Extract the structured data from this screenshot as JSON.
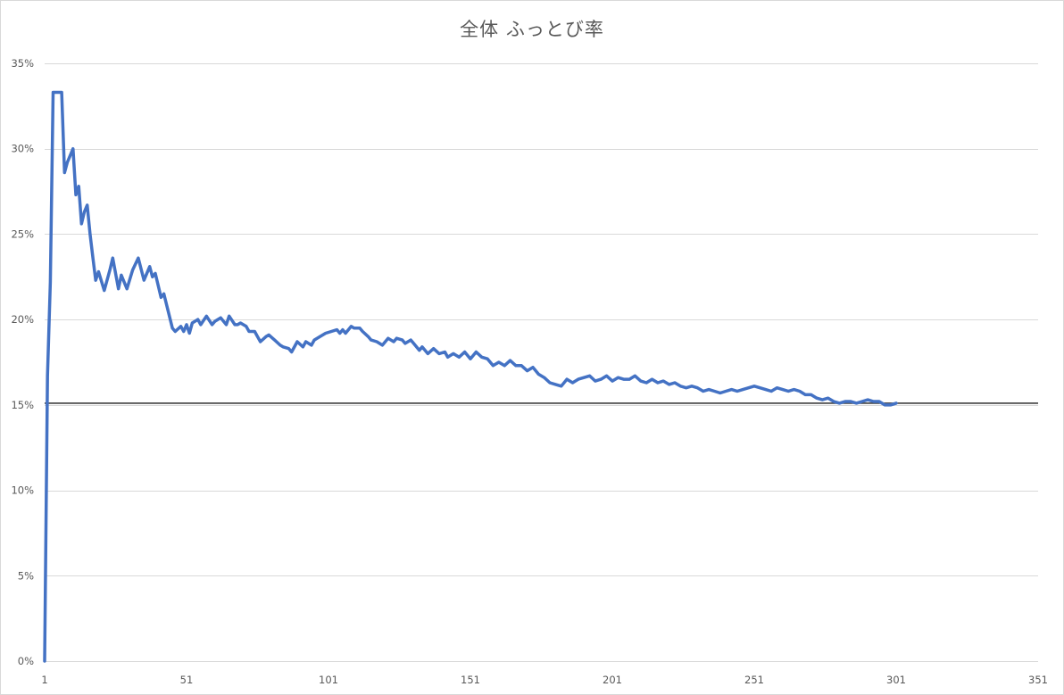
{
  "chart_data": {
    "type": "line",
    "title": "全体 ふっとび率",
    "xlabel": "",
    "ylabel": "",
    "xlim": [
      1,
      351
    ],
    "ylim": [
      0,
      0.35
    ],
    "x_ticks": [
      1,
      51,
      101,
      151,
      201,
      251,
      301,
      351
    ],
    "x_tick_labels": [
      "1",
      "51",
      "101",
      "151",
      "201",
      "251",
      "301",
      "351"
    ],
    "y_ticks": [
      0,
      0.05,
      0.1,
      0.15,
      0.2,
      0.25,
      0.3,
      0.35
    ],
    "y_tick_labels": [
      "0%",
      "5%",
      "10%",
      "15%",
      "20%",
      "25%",
      "30%",
      "35%"
    ],
    "grid": true,
    "legend": "none",
    "colors": {
      "series": "#4472c4",
      "reference": "#404040",
      "grid": "#d9d9d9",
      "text": "#595959"
    },
    "reference_line": {
      "y": 0.151
    },
    "series": [
      {
        "x": [
          1,
          2,
          3,
          4,
          5,
          6,
          7,
          8,
          9,
          10,
          11,
          12,
          13,
          14,
          15,
          16,
          17,
          18,
          19,
          20,
          22,
          24,
          25,
          27,
          28,
          30,
          32,
          34,
          36,
          38,
          39,
          40,
          42,
          43,
          46,
          47,
          49,
          50,
          51,
          52,
          53,
          55,
          56,
          58,
          60,
          61,
          63,
          65,
          66,
          68,
          69,
          70,
          72,
          73,
          75,
          76,
          77,
          79,
          80,
          82,
          84,
          85,
          87,
          88,
          90,
          92,
          93,
          95,
          96,
          98,
          100,
          102,
          104,
          105,
          106,
          107,
          108,
          109,
          110,
          112,
          113,
          115,
          116,
          118,
          120,
          122,
          124,
          125,
          127,
          128,
          130,
          131,
          133,
          134,
          136,
          138,
          140,
          142,
          143,
          145,
          147,
          149,
          151,
          153,
          155,
          157,
          159,
          161,
          163,
          165,
          167,
          169,
          171,
          173,
          175,
          177,
          179,
          181,
          183,
          185,
          187,
          189,
          191,
          193,
          195,
          197,
          199,
          201,
          203,
          205,
          207,
          209,
          211,
          213,
          215,
          217,
          219,
          221,
          223,
          225,
          227,
          229,
          231,
          233,
          235,
          237,
          239,
          241,
          243,
          245,
          247,
          249,
          251,
          253,
          255,
          257,
          259,
          261,
          263,
          265,
          267,
          269,
          271,
          273,
          275,
          277,
          279,
          281,
          283,
          285,
          287,
          289,
          291,
          293,
          295,
          297,
          299,
          301
        ],
        "y": [
          0,
          0.167,
          0.222,
          0.333,
          0.333,
          0.333,
          0.333,
          0.286,
          0.292,
          0.296,
          0.3,
          0.273,
          0.278,
          0.256,
          0.263,
          0.267,
          0.25,
          0.236,
          0.223,
          0.228,
          0.217,
          0.229,
          0.236,
          0.218,
          0.226,
          0.218,
          0.229,
          0.236,
          0.223,
          0.231,
          0.225,
          0.227,
          0.213,
          0.215,
          0.195,
          0.193,
          0.196,
          0.193,
          0.197,
          0.192,
          0.198,
          0.2,
          0.197,
          0.202,
          0.197,
          0.199,
          0.201,
          0.197,
          0.202,
          0.197,
          0.197,
          0.198,
          0.196,
          0.193,
          0.193,
          0.19,
          0.187,
          0.19,
          0.191,
          0.188,
          0.185,
          0.184,
          0.183,
          0.181,
          0.187,
          0.184,
          0.187,
          0.185,
          0.188,
          0.19,
          0.192,
          0.193,
          0.194,
          0.192,
          0.194,
          0.192,
          0.194,
          0.196,
          0.195,
          0.195,
          0.193,
          0.19,
          0.188,
          0.187,
          0.185,
          0.189,
          0.187,
          0.189,
          0.188,
          0.186,
          0.188,
          0.186,
          0.182,
          0.184,
          0.18,
          0.183,
          0.18,
          0.181,
          0.178,
          0.18,
          0.178,
          0.181,
          0.177,
          0.181,
          0.178,
          0.177,
          0.173,
          0.175,
          0.173,
          0.176,
          0.173,
          0.173,
          0.17,
          0.172,
          0.168,
          0.166,
          0.163,
          0.162,
          0.161,
          0.165,
          0.163,
          0.165,
          0.166,
          0.167,
          0.164,
          0.165,
          0.167,
          0.164,
          0.166,
          0.165,
          0.165,
          0.167,
          0.164,
          0.163,
          0.165,
          0.163,
          0.164,
          0.162,
          0.163,
          0.161,
          0.16,
          0.161,
          0.16,
          0.158,
          0.159,
          0.158,
          0.157,
          0.158,
          0.159,
          0.158,
          0.159,
          0.16,
          0.161,
          0.16,
          0.159,
          0.158,
          0.16,
          0.159,
          0.158,
          0.159,
          0.158,
          0.156,
          0.156,
          0.154,
          0.153,
          0.154,
          0.152,
          0.151,
          0.152,
          0.152,
          0.151,
          0.152,
          0.153,
          0.152,
          0.152,
          0.15,
          0.15,
          0.151
        ]
      }
    ]
  }
}
